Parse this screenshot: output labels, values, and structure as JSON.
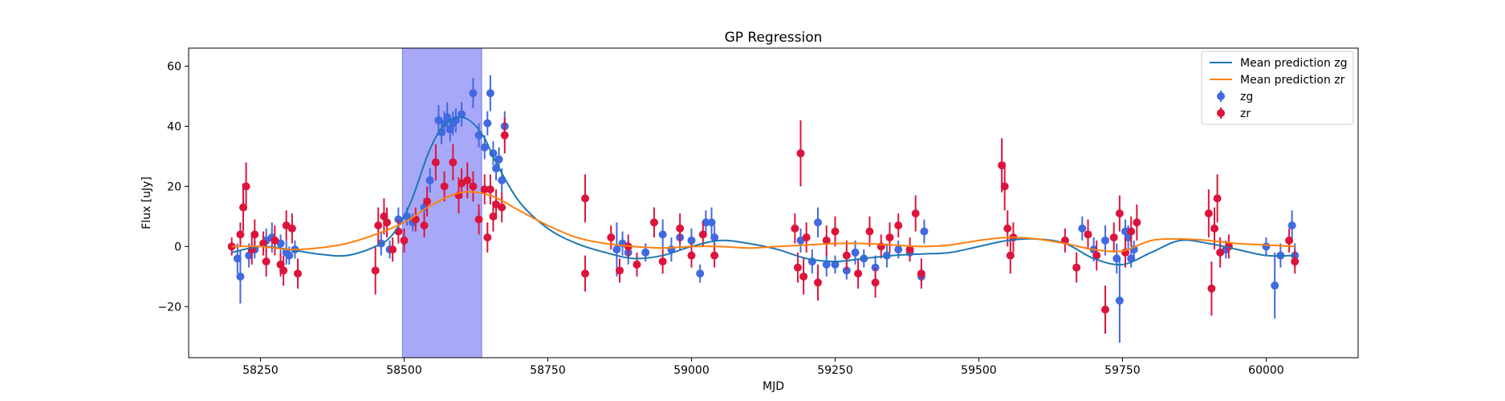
{
  "chart_data": {
    "type": "scatter",
    "title": "GP Regression",
    "xlabel": "MJD",
    "ylabel": "Flux [uJy]",
    "xlim": [
      58125,
      60160
    ],
    "ylim": [
      -37,
      66
    ],
    "xticks": [
      58250,
      58500,
      58750,
      59000,
      59250,
      59500,
      59750,
      60000
    ],
    "yticks": [
      -20,
      0,
      20,
      40,
      60
    ],
    "grid": false,
    "legend": "top-right",
    "shaded_region": {
      "x_start": 58497,
      "x_end": 58635,
      "color": "#a8a8f8"
    },
    "lines": [
      {
        "name": "Mean prediction zg",
        "color": "#1f77b4",
        "x": [
          58200,
          58250,
          58300,
          58350,
          58400,
          58450,
          58480,
          58510,
          58540,
          58560,
          58580,
          58600,
          58620,
          58640,
          58660,
          58700,
          58750,
          58800,
          58850,
          58900,
          58950,
          59000,
          59050,
          59100,
          59150,
          59200,
          59250,
          59300,
          59350,
          59400,
          59450,
          59500,
          59550,
          59600,
          59650,
          59700,
          59750,
          59800,
          59850,
          59900,
          59950,
          60000,
          60050
        ],
        "y": [
          -2,
          0,
          -1,
          -2.5,
          -3,
          0,
          4,
          14,
          30,
          38,
          42,
          43,
          41,
          36,
          28,
          15,
          6,
          1,
          -2,
          -4,
          -3,
          0,
          2,
          1,
          -1,
          -4,
          -5,
          -4,
          -3,
          -2.5,
          -2,
          0,
          2,
          2.5,
          1,
          -4,
          -6,
          -2,
          2,
          1,
          -1,
          -3,
          -3
        ]
      },
      {
        "name": "Mean prediction zr",
        "color": "#ff7f0e",
        "x": [
          58200,
          58250,
          58300,
          58350,
          58400,
          58450,
          58500,
          58550,
          58600,
          58650,
          58700,
          58750,
          58800,
          58850,
          58900,
          58950,
          59000,
          59050,
          59100,
          59150,
          59200,
          59250,
          59300,
          59350,
          59400,
          59450,
          59500,
          59550,
          59600,
          59650,
          59700,
          59750,
          59800,
          59850,
          59900,
          59950,
          60000,
          60050
        ],
        "y": [
          0,
          0,
          -1,
          -0.5,
          1,
          4,
          8,
          14,
          18,
          17,
          12,
          7,
          3,
          1,
          0,
          -0.5,
          0,
          0,
          -0.5,
          0,
          0.5,
          1,
          1,
          0.5,
          0,
          0.5,
          2,
          3,
          2.5,
          1,
          -1,
          -1.5,
          2,
          2.5,
          2,
          1,
          0.5,
          0
        ]
      }
    ],
    "series": [
      {
        "name": "zg",
        "color": "#4169e1",
        "points": [
          [
            58210,
            -4,
            5
          ],
          [
            58215,
            -10,
            9
          ],
          [
            58230,
            -3,
            4
          ],
          [
            58240,
            -1,
            3
          ],
          [
            58260,
            2,
            4
          ],
          [
            58270,
            3,
            5
          ],
          [
            58285,
            1,
            3
          ],
          [
            58295,
            -2,
            4
          ],
          [
            58300,
            -3,
            3
          ],
          [
            58310,
            -1,
            3
          ],
          [
            58460,
            1,
            4
          ],
          [
            58475,
            -1,
            3
          ],
          [
            58490,
            9,
            4
          ],
          [
            58505,
            10,
            3
          ],
          [
            58515,
            8,
            3
          ],
          [
            58535,
            13,
            3
          ],
          [
            58545,
            22,
            4
          ],
          [
            58560,
            42,
            5
          ],
          [
            58565,
            38,
            4
          ],
          [
            58570,
            41,
            4
          ],
          [
            58575,
            43,
            5
          ],
          [
            58580,
            39,
            4
          ],
          [
            58585,
            41,
            4
          ],
          [
            58590,
            42,
            4
          ],
          [
            58600,
            44,
            4
          ],
          [
            58620,
            51,
            5
          ],
          [
            58630,
            37,
            4
          ],
          [
            58640,
            33,
            4
          ],
          [
            58645,
            41,
            4
          ],
          [
            58650,
            51,
            6
          ],
          [
            58655,
            31,
            4
          ],
          [
            58660,
            26,
            4
          ],
          [
            58665,
            29,
            4
          ],
          [
            58670,
            22,
            4
          ],
          [
            58675,
            40,
            5
          ],
          [
            58870,
            -1,
            9
          ],
          [
            58880,
            1,
            4
          ],
          [
            58890,
            -2,
            4
          ],
          [
            58920,
            -2,
            3
          ],
          [
            58950,
            4,
            5
          ],
          [
            58965,
            -1,
            4
          ],
          [
            58980,
            3,
            4
          ],
          [
            59000,
            2,
            4
          ],
          [
            59015,
            -9,
            3
          ],
          [
            59025,
            8,
            4
          ],
          [
            59035,
            8,
            5
          ],
          [
            59040,
            3,
            4
          ],
          [
            59190,
            2,
            4
          ],
          [
            59210,
            -5,
            4
          ],
          [
            59220,
            8,
            5
          ],
          [
            59235,
            -6,
            4
          ],
          [
            59250,
            -6,
            3
          ],
          [
            59270,
            -8,
            3
          ],
          [
            59285,
            -2,
            4
          ],
          [
            59300,
            -4,
            3
          ],
          [
            59320,
            -7,
            4
          ],
          [
            59340,
            -3,
            4
          ],
          [
            59360,
            -1,
            3
          ],
          [
            59380,
            -2,
            3
          ],
          [
            59400,
            -10,
            3
          ],
          [
            59405,
            5,
            4
          ],
          [
            59680,
            6,
            4
          ],
          [
            59700,
            -1,
            4
          ],
          [
            59720,
            2,
            5
          ],
          [
            59740,
            -4,
            5
          ],
          [
            59745,
            -18,
            14
          ],
          [
            59755,
            5,
            4
          ],
          [
            59760,
            3,
            4
          ],
          [
            59765,
            -4,
            3
          ],
          [
            59770,
            -1,
            3
          ],
          [
            59930,
            -1,
            3
          ],
          [
            60000,
            0,
            3
          ],
          [
            60015,
            -13,
            11
          ],
          [
            60025,
            -3,
            4
          ],
          [
            60045,
            7,
            5
          ],
          [
            60050,
            -3,
            4
          ]
        ]
      },
      {
        "name": "zr",
        "color": "#dc143c",
        "points": [
          [
            58200,
            0,
            3
          ],
          [
            58215,
            4,
            4
          ],
          [
            58220,
            13,
            8
          ],
          [
            58225,
            20,
            8
          ],
          [
            58235,
            -1,
            5
          ],
          [
            58240,
            4,
            5
          ],
          [
            58255,
            1,
            4
          ],
          [
            58260,
            -5,
            5
          ],
          [
            58275,
            2,
            5
          ],
          [
            58285,
            -6,
            4
          ],
          [
            58290,
            -8,
            5
          ],
          [
            58295,
            7,
            5
          ],
          [
            58305,
            6,
            5
          ],
          [
            58315,
            -9,
            5
          ],
          [
            58450,
            -8,
            8
          ],
          [
            58455,
            7,
            6
          ],
          [
            58465,
            10,
            6
          ],
          [
            58470,
            8,
            5
          ],
          [
            58480,
            -1,
            4
          ],
          [
            58490,
            5,
            4
          ],
          [
            58500,
            2,
            4
          ],
          [
            58520,
            9,
            4
          ],
          [
            58535,
            7,
            4
          ],
          [
            58540,
            15,
            5
          ],
          [
            58555,
            28,
            6
          ],
          [
            58570,
            20,
            5
          ],
          [
            58585,
            28,
            6
          ],
          [
            58595,
            17,
            6
          ],
          [
            58600,
            21,
            5
          ],
          [
            58610,
            22,
            6
          ],
          [
            58620,
            20,
            5
          ],
          [
            58630,
            9,
            5
          ],
          [
            58640,
            19,
            5
          ],
          [
            58645,
            3,
            5
          ],
          [
            58650,
            19,
            5
          ],
          [
            58655,
            10,
            5
          ],
          [
            58660,
            14,
            5
          ],
          [
            58670,
            13,
            5
          ],
          [
            58675,
            37,
            6
          ],
          [
            58815,
            16,
            8
          ],
          [
            58815,
            -9,
            6
          ],
          [
            58860,
            3,
            4
          ],
          [
            58875,
            -8,
            4
          ],
          [
            58890,
            0,
            4
          ],
          [
            58905,
            -6,
            4
          ],
          [
            58935,
            8,
            5
          ],
          [
            58950,
            -5,
            4
          ],
          [
            58980,
            6,
            5
          ],
          [
            59000,
            -3,
            4
          ],
          [
            59020,
            4,
            4
          ],
          [
            59040,
            -3,
            4
          ],
          [
            59180,
            6,
            5
          ],
          [
            59185,
            -7,
            5
          ],
          [
            59190,
            31,
            11
          ],
          [
            59195,
            -10,
            6
          ],
          [
            59200,
            3,
            5
          ],
          [
            59220,
            -12,
            6
          ],
          [
            59235,
            2,
            5
          ],
          [
            59250,
            5,
            5
          ],
          [
            59270,
            -3,
            5
          ],
          [
            59290,
            -9,
            5
          ],
          [
            59310,
            5,
            5
          ],
          [
            59320,
            -12,
            5
          ],
          [
            59330,
            0,
            4
          ],
          [
            59345,
            3,
            5
          ],
          [
            59360,
            7,
            4
          ],
          [
            59380,
            -1,
            4
          ],
          [
            59390,
            11,
            6
          ],
          [
            59400,
            -9,
            5
          ],
          [
            59540,
            27,
            9
          ],
          [
            59545,
            20,
            8
          ],
          [
            59550,
            6,
            6
          ],
          [
            59555,
            -3,
            6
          ],
          [
            59560,
            3,
            5
          ],
          [
            59650,
            2,
            4
          ],
          [
            59670,
            -7,
            5
          ],
          [
            59690,
            4,
            5
          ],
          [
            59705,
            -3,
            5
          ],
          [
            59720,
            -21,
            8
          ],
          [
            59735,
            3,
            5
          ],
          [
            59745,
            11,
            6
          ],
          [
            59755,
            -2,
            5
          ],
          [
            59765,
            5,
            5
          ],
          [
            59775,
            8,
            6
          ],
          [
            59900,
            11,
            8
          ],
          [
            59905,
            -14,
            9
          ],
          [
            59910,
            6,
            7
          ],
          [
            59915,
            16,
            8
          ],
          [
            59920,
            -2,
            5
          ],
          [
            59935,
            0,
            4
          ],
          [
            60040,
            2,
            4
          ],
          [
            60050,
            -5,
            4
          ]
        ]
      }
    ]
  }
}
